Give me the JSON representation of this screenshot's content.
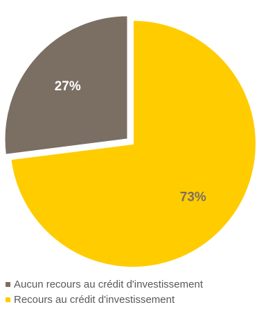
{
  "chart_data": {
    "type": "pie",
    "title": "",
    "slices": [
      {
        "label": "Aucun recours au crédit d'investissement",
        "value": 27,
        "display": "27%",
        "color": "#7b6e63",
        "exploded": true
      },
      {
        "label": "Recours au crédit d'investissement",
        "value": 73,
        "display": "73%",
        "color": "#ffcc00",
        "exploded": false
      }
    ],
    "legend_position": "bottom-left",
    "label_color": {
      "27%": "#ffffff",
      "73%": "#7b6e63"
    }
  }
}
